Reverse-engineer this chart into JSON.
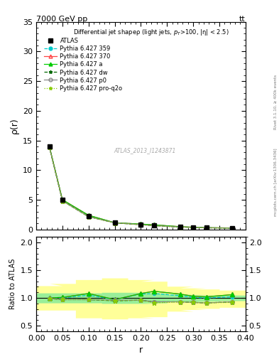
{
  "title_top": "7000 GeV pp",
  "title_right": "tt",
  "ylabel_main": "ρ(r)",
  "ylabel_ratio": "Ratio to ATLAS",
  "xlabel": "r",
  "subtitle": "Differential jet shapeρ (light jets, p_{T}>100, |η| < 2.5)",
  "watermark": "ATLAS_2013_I1243871",
  "right_label1": "Rivet 3.1.10, ≥ 400k events",
  "right_label2": "mcplots.cern.ch [arXiv:1306.3436]",
  "r_values": [
    0.025,
    0.05,
    0.1,
    0.15,
    0.2,
    0.225,
    0.275,
    0.3,
    0.325,
    0.375
  ],
  "atlas_data": [
    14.0,
    4.95,
    2.2,
    1.15,
    0.82,
    0.68,
    0.42,
    0.35,
    0.28,
    0.22
  ],
  "series": [
    {
      "label": "Pythia 6.427 359",
      "color": "#00CCCC",
      "linestyle": "--",
      "marker": "o",
      "markersize": 3,
      "markerfacecolor": "#00CCCC",
      "ratio": [
        1.0,
        1.0,
        1.05,
        0.97,
        1.07,
        1.08,
        1.04,
        1.01,
        1.0,
        1.02
      ]
    },
    {
      "label": "Pythia 6.427 370",
      "color": "#FF4444",
      "linestyle": "-",
      "marker": "^",
      "markersize": 4,
      "markerfacecolor": "none",
      "ratio": [
        1.0,
        1.01,
        1.08,
        0.97,
        1.08,
        1.12,
        1.07,
        1.03,
        1.02,
        1.06
      ]
    },
    {
      "label": "Pythia 6.427 a",
      "color": "#00CC00",
      "linestyle": "-",
      "marker": "^",
      "markersize": 4,
      "markerfacecolor": "#00CC00",
      "ratio": [
        1.0,
        1.01,
        1.08,
        0.97,
        1.08,
        1.12,
        1.07,
        1.03,
        1.02,
        1.06
      ]
    },
    {
      "label": "Pythia 6.427 dw",
      "color": "#006600",
      "linestyle": "--",
      "marker": "*",
      "markersize": 5,
      "markerfacecolor": "#006600",
      "ratio": [
        0.99,
        0.97,
        0.97,
        0.95,
        0.96,
        0.93,
        0.93,
        0.92,
        0.91,
        0.93
      ]
    },
    {
      "label": "Pythia 6.427 p0",
      "color": "#888888",
      "linestyle": "-",
      "marker": "o",
      "markersize": 4,
      "markerfacecolor": "none",
      "ratio": [
        0.99,
        0.97,
        0.97,
        0.96,
        0.96,
        0.93,
        0.93,
        0.92,
        0.91,
        0.93
      ]
    },
    {
      "label": "Pythia 6.427 pro-q2o",
      "color": "#88CC00",
      "linestyle": ":",
      "marker": "*",
      "markersize": 5,
      "markerfacecolor": "#88CC00",
      "ratio": [
        0.99,
        0.97,
        0.97,
        0.95,
        0.96,
        0.91,
        0.93,
        0.92,
        0.91,
        0.92
      ]
    }
  ],
  "yellow_band_low": [
    0.78,
    0.78,
    0.64,
    0.62,
    0.64,
    0.66,
    0.76,
    0.79,
    0.81,
    0.83
  ],
  "yellow_band_high": [
    1.22,
    1.26,
    1.33,
    1.36,
    1.33,
    1.3,
    1.21,
    1.18,
    1.16,
    1.14
  ],
  "green_band_low": [
    0.91,
    0.91,
    0.91,
    0.9,
    0.9,
    0.91,
    0.93,
    0.93,
    0.94,
    0.95
  ],
  "green_band_high": [
    1.09,
    1.09,
    1.09,
    1.1,
    1.1,
    1.09,
    1.07,
    1.06,
    1.05,
    1.05
  ],
  "xlim": [
    0.0,
    0.4
  ],
  "ylim_main": [
    0,
    35
  ],
  "ylim_ratio": [
    0.4,
    2.1
  ],
  "yticks_main": [
    0,
    5,
    10,
    15,
    20,
    25,
    30,
    35
  ],
  "yticks_ratio": [
    0.5,
    1.0,
    1.5,
    2.0
  ],
  "background_color": "#ffffff"
}
